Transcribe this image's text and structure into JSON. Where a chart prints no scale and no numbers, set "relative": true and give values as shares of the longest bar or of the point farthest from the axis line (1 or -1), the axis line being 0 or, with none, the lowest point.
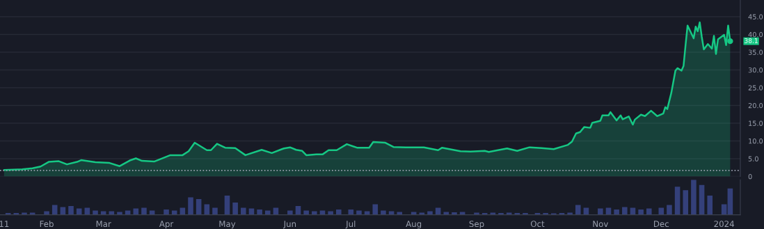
{
  "chart_data": [
    {
      "type": "area",
      "tick_labels": "y",
      "grid": "y",
      "line_style": "solid",
      "ylim": [
        0,
        49.7
      ],
      "yticks": [
        0,
        {
          "value": 5,
          "label": "5.0"
        },
        {
          "value": 10,
          "label": "10.0"
        },
        {
          "value": 15,
          "label": "15.0"
        },
        {
          "value": 20,
          "label": "20.0"
        },
        {
          "value": 25,
          "label": "25.0"
        },
        {
          "value": 30,
          "label": "30.0"
        },
        {
          "value": 35,
          "label": "35.0"
        },
        {
          "value": 40,
          "label": "40.0"
        },
        {
          "value": 45,
          "label": "45.0"
        }
      ],
      "xlim": [
        "2023-01-09",
        "2024-01-09"
      ],
      "ref_lines": [
        {
          "axis": "y",
          "value": 1.7,
          "color": "#9aa0ae",
          "line_style": "dotted"
        }
      ],
      "annotations": [
        {
          "text": "38.1",
          "x": "2024-01-04",
          "y": 38.1
        }
      ],
      "series": [
        {
          "color": "#16c784",
          "x": [
            "2023-01-11",
            "2023-01-20",
            "2023-01-25",
            "2023-01-29",
            "2023-02-02",
            "2023-02-07",
            "2023-02-11",
            "2023-02-16",
            "2023-02-18",
            "2023-02-25",
            "2023-03-04",
            "2023-03-09",
            "2023-03-14",
            "2023-03-17",
            "2023-03-20",
            "2023-03-26",
            "2023-04-03",
            "2023-04-09",
            "2023-04-12",
            "2023-04-15",
            "2023-04-21",
            "2023-04-23",
            "2023-04-26",
            "2023-04-30",
            "2023-05-05",
            "2023-05-10",
            "2023-05-18",
            "2023-05-23",
            "2023-05-28",
            "2023-05-29",
            "2023-06-01",
            "2023-06-04",
            "2023-06-07",
            "2023-06-09",
            "2023-06-14",
            "2023-06-17",
            "2023-06-20",
            "2023-06-24",
            "2023-06-29",
            "2023-07-04",
            "2023-07-10",
            "2023-07-12",
            "2023-07-18",
            "2023-07-22",
            "2023-07-28",
            "2023-08-06",
            "2023-08-13",
            "2023-08-15",
            "2023-08-24",
            "2023-08-29",
            "2023-09-05",
            "2023-09-07",
            "2023-09-16",
            "2023-09-21",
            "2023-09-27",
            "2023-10-03",
            "2023-10-09",
            "2023-10-16",
            "2023-10-18",
            "2023-10-20",
            "2023-10-22",
            "2023-10-24",
            "2023-10-27",
            "2023-10-28",
            "2023-11-01",
            "2023-11-02",
            "2023-11-05",
            "2023-11-06",
            "2023-11-09",
            "2023-11-11",
            "2023-11-12",
            "2023-11-15",
            "2023-11-17",
            "2023-11-18",
            "2023-11-21",
            "2023-11-23",
            "2023-11-26",
            "2023-11-29",
            "2023-12-02",
            "2023-12-03",
            "2023-12-04",
            "2023-12-06",
            "2023-12-08",
            "2023-12-09",
            "2023-12-11",
            "2023-12-12",
            "2023-12-13",
            "2023-12-14",
            "2023-12-17",
            "2023-12-18",
            "2023-12-19",
            "2023-12-20",
            "2023-12-21",
            "2023-12-22",
            "2023-12-24",
            "2023-12-26",
            "2023-12-27",
            "2023-12-28",
            "2023-12-29",
            "2024-01-01",
            "2024-01-02",
            "2024-01-03",
            "2024-01-04"
          ],
          "values": [
            1.8,
            2.0,
            2.3,
            2.8,
            4.1,
            4.3,
            3.4,
            4.1,
            4.6,
            4.0,
            3.8,
            2.9,
            4.5,
            5.1,
            4.4,
            4.2,
            6.0,
            6.0,
            7.1,
            9.5,
            7.4,
            7.4,
            9.2,
            8.1,
            8.0,
            6.0,
            7.5,
            6.6,
            7.7,
            7.9,
            8.2,
            7.5,
            7.2,
            6.0,
            6.2,
            6.2,
            7.4,
            7.4,
            9.1,
            8.1,
            8.1,
            9.7,
            9.5,
            8.3,
            8.2,
            8.2,
            7.4,
            8.1,
            7.1,
            7.0,
            7.2,
            6.9,
            7.9,
            7.2,
            8.2,
            8.0,
            7.7,
            8.9,
            9.8,
            12.1,
            12.5,
            13.9,
            13.7,
            15.1,
            15.7,
            17.2,
            17.2,
            18.1,
            15.8,
            17.2,
            16.1,
            16.9,
            14.6,
            16.0,
            17.4,
            17.0,
            18.5,
            17.0,
            17.7,
            19.5,
            19.0,
            23.6,
            29.8,
            30.5,
            29.8,
            31.1,
            37.0,
            42.5,
            38.9,
            42.2,
            40.9,
            43.4,
            39.3,
            35.8,
            37.3,
            36.0,
            39.6,
            34.5,
            38.6,
            39.9,
            37.0,
            42.5,
            38.1
          ]
        }
      ]
    },
    {
      "type": "bar",
      "relative": true,
      "tick_labels": "x",
      "xlim": [
        "2023-01-09",
        "2024-01-09"
      ],
      "xticks": [
        {
          "value": "2023-01-11",
          "label": "11"
        },
        {
          "value": "2023-02-01",
          "label": "Feb"
        },
        {
          "value": "2023-03-01",
          "label": "Mar"
        },
        {
          "value": "2023-04-01",
          "label": "Apr"
        },
        {
          "value": "2023-05-01",
          "label": "May"
        },
        {
          "value": "2023-06-01",
          "label": "Jun"
        },
        {
          "value": "2023-07-01",
          "label": "Jul"
        },
        {
          "value": "2023-08-01",
          "label": "Aug"
        },
        {
          "value": "2023-09-01",
          "label": "Sep"
        },
        {
          "value": "2023-10-01",
          "label": "Oct"
        },
        {
          "value": "2023-11-01",
          "label": "Nov"
        },
        {
          "value": "2023-12-01",
          "label": "Dec"
        },
        {
          "value": "2024-01-01",
          "label": "2024"
        }
      ],
      "series": [
        {
          "color": "#34407a",
          "x": [
            "2023-01-13",
            "2023-01-17",
            "2023-01-21",
            "2023-01-25",
            "2023-02-01",
            "2023-02-05",
            "2023-02-09",
            "2023-02-13",
            "2023-02-17",
            "2023-02-21",
            "2023-02-25",
            "2023-03-01",
            "2023-03-05",
            "2023-03-09",
            "2023-03-13",
            "2023-03-17",
            "2023-03-21",
            "2023-03-25",
            "2023-04-01",
            "2023-04-05",
            "2023-04-09",
            "2023-04-13",
            "2023-04-17",
            "2023-04-21",
            "2023-04-25",
            "2023-05-01",
            "2023-05-05",
            "2023-05-09",
            "2023-05-13",
            "2023-05-17",
            "2023-05-21",
            "2023-05-25",
            "2023-06-01",
            "2023-06-05",
            "2023-06-09",
            "2023-06-13",
            "2023-06-17",
            "2023-06-21",
            "2023-06-25",
            "2023-07-01",
            "2023-07-05",
            "2023-07-09",
            "2023-07-13",
            "2023-07-17",
            "2023-07-21",
            "2023-07-25",
            "2023-08-01",
            "2023-08-05",
            "2023-08-09",
            "2023-08-13",
            "2023-08-17",
            "2023-08-21",
            "2023-08-25",
            "2023-09-01",
            "2023-09-05",
            "2023-09-09",
            "2023-09-13",
            "2023-09-17",
            "2023-09-21",
            "2023-09-25",
            "2023-10-01",
            "2023-10-05",
            "2023-10-09",
            "2023-10-13",
            "2023-10-17",
            "2023-10-21",
            "2023-10-25",
            "2023-11-01",
            "2023-11-05",
            "2023-11-09",
            "2023-11-13",
            "2023-11-17",
            "2023-11-21",
            "2023-11-25",
            "2023-12-01",
            "2023-12-05",
            "2023-12-09",
            "2023-12-13",
            "2023-12-17",
            "2023-12-21",
            "2023-12-25",
            "2024-01-01",
            "2024-01-04"
          ],
          "values": [
            0.05,
            0.05,
            0.06,
            0.06,
            0.1,
            0.28,
            0.22,
            0.25,
            0.18,
            0.2,
            0.12,
            0.1,
            0.1,
            0.08,
            0.12,
            0.18,
            0.2,
            0.12,
            0.15,
            0.12,
            0.2,
            0.5,
            0.45,
            0.3,
            0.2,
            0.55,
            0.35,
            0.2,
            0.18,
            0.15,
            0.12,
            0.2,
            0.12,
            0.25,
            0.12,
            0.1,
            0.12,
            0.1,
            0.15,
            0.15,
            0.12,
            0.1,
            0.3,
            0.12,
            0.1,
            0.08,
            0.08,
            0.06,
            0.1,
            0.2,
            0.08,
            0.07,
            0.08,
            0.06,
            0.05,
            0.06,
            0.05,
            0.06,
            0.05,
            0.05,
            0.05,
            0.05,
            0.04,
            0.05,
            0.06,
            0.28,
            0.2,
            0.18,
            0.2,
            0.15,
            0.22,
            0.2,
            0.15,
            0.18,
            0.2,
            0.28,
            0.8,
            0.7,
            1,
            0.85,
            0.55,
            0.3,
            0.75
          ]
        }
      ]
    }
  ]
}
